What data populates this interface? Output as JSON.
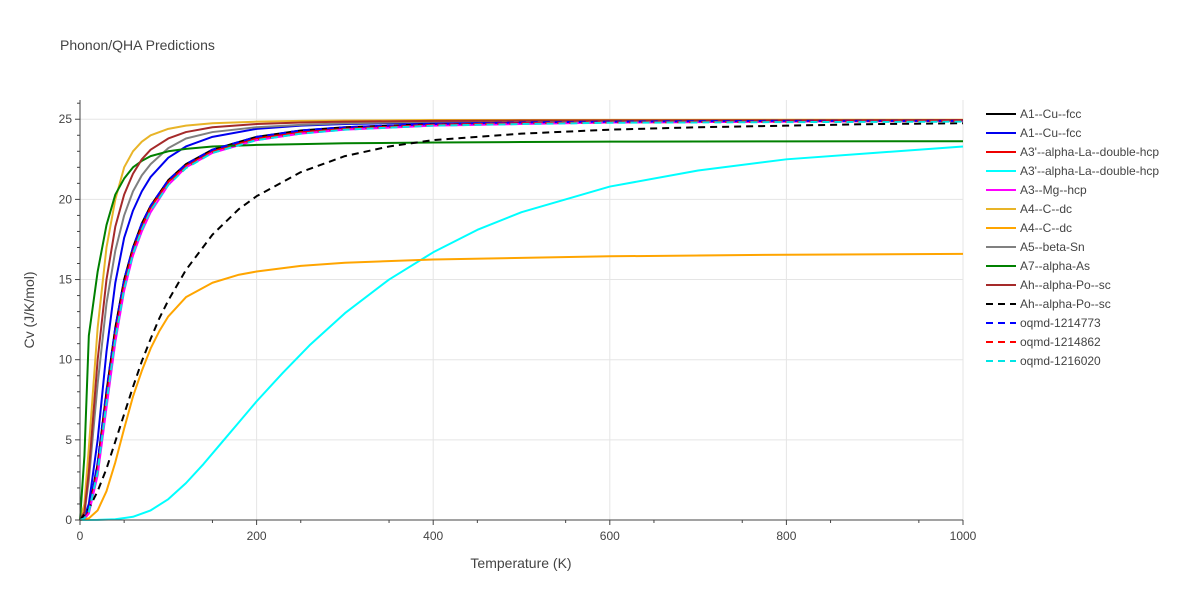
{
  "chart_data": {
    "type": "line",
    "title": "Phonon/QHA Predictions",
    "xlabel": "Temperature (K)",
    "ylabel": "Cv (J/K/mol)",
    "xlim": [
      0,
      1000
    ],
    "ylim": [
      0,
      26.2
    ],
    "x_ticks": [
      0,
      200,
      400,
      600,
      800,
      1000
    ],
    "y_ticks": [
      0,
      5,
      10,
      15,
      20,
      25
    ],
    "grid": true,
    "legend_position": "right",
    "series": [
      {
        "name": "A1--Cu--fcc",
        "color": "#000000",
        "dash": "solid",
        "x": [
          0,
          5,
          10,
          20,
          30,
          40,
          50,
          60,
          70,
          80,
          100,
          120,
          150,
          200,
          250,
          300,
          400,
          500,
          600,
          800,
          1000
        ],
        "y": [
          0,
          0.1,
          0.6,
          3.5,
          8.0,
          12.0,
          15.0,
          17.0,
          18.5,
          19.6,
          21.2,
          22.2,
          23.1,
          23.9,
          24.3,
          24.5,
          24.7,
          24.8,
          24.85,
          24.9,
          24.9
        ]
      },
      {
        "name": "A1--Cu--fcc",
        "color": "#0000ee",
        "dash": "solid",
        "x": [
          0,
          5,
          10,
          20,
          30,
          40,
          50,
          60,
          70,
          80,
          100,
          120,
          150,
          200,
          250,
          300,
          400,
          500,
          600,
          800,
          1000
        ],
        "y": [
          0,
          0.2,
          1.0,
          5.0,
          10.5,
          14.8,
          17.6,
          19.3,
          20.5,
          21.4,
          22.6,
          23.3,
          23.9,
          24.4,
          24.6,
          24.7,
          24.8,
          24.85,
          24.9,
          24.9,
          24.9
        ]
      },
      {
        "name": "A3'--alpha-La--double-hcp",
        "color": "#ee0000",
        "dash": "solid",
        "x": [
          0,
          5,
          10,
          20,
          30,
          40,
          50,
          60,
          70,
          80,
          100,
          120,
          150,
          200,
          250,
          300,
          400,
          500,
          600,
          800,
          1000
        ],
        "y": [
          0,
          0.1,
          0.5,
          3.2,
          7.6,
          11.6,
          14.7,
          16.8,
          18.3,
          19.5,
          21.1,
          22.1,
          23.0,
          23.8,
          24.2,
          24.4,
          24.65,
          24.75,
          24.8,
          24.85,
          24.9
        ]
      },
      {
        "name": "A3'--alpha-La--double-hcp",
        "color": "#00ffff",
        "dash": "solid",
        "x": [
          0,
          20,
          40,
          60,
          80,
          100,
          120,
          140,
          160,
          180,
          200,
          230,
          260,
          300,
          350,
          400,
          450,
          500,
          600,
          700,
          800,
          900,
          1000
        ],
        "y": [
          0,
          0.01,
          0.05,
          0.2,
          0.6,
          1.3,
          2.3,
          3.5,
          4.8,
          6.1,
          7.4,
          9.2,
          10.9,
          12.9,
          15.0,
          16.7,
          18.1,
          19.2,
          20.8,
          21.8,
          22.5,
          22.9,
          23.3
        ]
      },
      {
        "name": "A3--Mg--hcp",
        "color": "#ff00ff",
        "dash": "solid",
        "x": [
          0,
          5,
          10,
          20,
          30,
          40,
          50,
          60,
          70,
          80,
          100,
          120,
          150,
          200,
          250,
          300,
          400,
          500,
          600,
          800,
          1000
        ],
        "y": [
          0,
          0.08,
          0.4,
          2.8,
          7.0,
          11.1,
          14.3,
          16.5,
          18.0,
          19.2,
          20.9,
          22.0,
          22.9,
          23.7,
          24.1,
          24.35,
          24.6,
          24.7,
          24.8,
          24.85,
          24.9
        ]
      },
      {
        "name": "A4--C--dc",
        "color": "#e8b428",
        "dash": "solid",
        "x": [
          0,
          5,
          10,
          20,
          30,
          40,
          50,
          60,
          70,
          80,
          100,
          120,
          150,
          200,
          250,
          300,
          400,
          500,
          600,
          800,
          1000
        ],
        "y": [
          0,
          1.0,
          4.5,
          12.0,
          17.0,
          20.0,
          22.0,
          23.0,
          23.6,
          24.0,
          24.4,
          24.6,
          24.75,
          24.85,
          24.9,
          24.92,
          24.95,
          24.95,
          24.96,
          24.97,
          24.97
        ]
      },
      {
        "name": "A4--C--dc",
        "color": "#ffa500",
        "dash": "solid",
        "x": [
          0,
          10,
          20,
          30,
          40,
          50,
          60,
          70,
          80,
          90,
          100,
          120,
          150,
          180,
          200,
          250,
          300,
          400,
          500,
          600,
          800,
          1000
        ],
        "y": [
          0,
          0.1,
          0.6,
          1.8,
          3.6,
          5.7,
          7.7,
          9.3,
          10.7,
          11.8,
          12.7,
          13.9,
          14.8,
          15.3,
          15.5,
          15.85,
          16.05,
          16.25,
          16.35,
          16.45,
          16.55,
          16.6
        ]
      },
      {
        "name": "A5--beta-Sn",
        "color": "#808080",
        "dash": "solid",
        "x": [
          0,
          5,
          10,
          20,
          30,
          40,
          50,
          60,
          70,
          80,
          100,
          120,
          150,
          200,
          250,
          300,
          400,
          500,
          600,
          800,
          1000
        ],
        "y": [
          0,
          0.4,
          2.5,
          8.5,
          13.5,
          16.8,
          19.0,
          20.5,
          21.5,
          22.2,
          23.2,
          23.8,
          24.2,
          24.5,
          24.65,
          24.75,
          24.85,
          24.9,
          24.9,
          24.92,
          24.92
        ]
      },
      {
        "name": "A7--alpha-As",
        "color": "#008000",
        "dash": "solid",
        "x": [
          0,
          5,
          10,
          20,
          30,
          40,
          50,
          60,
          70,
          80,
          100,
          120,
          150,
          200,
          250,
          300,
          400,
          500,
          600,
          800,
          1000
        ],
        "y": [
          0,
          4.0,
          11.5,
          15.5,
          18.4,
          20.3,
          21.3,
          22.0,
          22.4,
          22.7,
          23.0,
          23.15,
          23.3,
          23.4,
          23.45,
          23.5,
          23.55,
          23.58,
          23.6,
          23.62,
          23.63
        ]
      },
      {
        "name": "Ah--alpha-Po--sc",
        "color": "#a52a2a",
        "dash": "solid",
        "x": [
          0,
          5,
          10,
          20,
          30,
          40,
          50,
          60,
          70,
          80,
          100,
          120,
          150,
          200,
          250,
          300,
          400,
          500,
          600,
          800,
          1000
        ],
        "y": [
          0,
          0.5,
          3.0,
          10.0,
          15.0,
          18.3,
          20.3,
          21.6,
          22.5,
          23.1,
          23.8,
          24.2,
          24.5,
          24.7,
          24.8,
          24.85,
          24.9,
          24.92,
          24.93,
          24.94,
          24.95
        ]
      },
      {
        "name": "Ah--alpha-Po--sc",
        "color": "#000000",
        "dash": "dash",
        "x": [
          0,
          10,
          20,
          30,
          40,
          50,
          60,
          70,
          80,
          90,
          100,
          120,
          150,
          180,
          200,
          250,
          300,
          350,
          400,
          500,
          600,
          700,
          800,
          900,
          1000
        ],
        "y": [
          0,
          0.7,
          1.8,
          3.2,
          4.9,
          6.6,
          8.3,
          9.9,
          11.3,
          12.6,
          13.7,
          15.6,
          17.8,
          19.4,
          20.2,
          21.7,
          22.7,
          23.3,
          23.7,
          24.1,
          24.35,
          24.5,
          24.6,
          24.7,
          24.75
        ]
      },
      {
        "name": "oqmd-1214773",
        "color": "#0000ff",
        "dash": "dash",
        "x": [
          0,
          5,
          10,
          20,
          30,
          40,
          50,
          60,
          70,
          80,
          100,
          120,
          150,
          200,
          250,
          300,
          400,
          500,
          600,
          800,
          1000
        ],
        "y": [
          0,
          0.1,
          0.6,
          3.6,
          8.1,
          12.0,
          15.0,
          17.0,
          18.5,
          19.6,
          21.2,
          22.2,
          23.1,
          23.9,
          24.3,
          24.5,
          24.7,
          24.8,
          24.85,
          24.9,
          24.9
        ]
      },
      {
        "name": "oqmd-1214862",
        "color": "#ff0000",
        "dash": "dash",
        "x": [
          0,
          5,
          10,
          20,
          30,
          40,
          50,
          60,
          70,
          80,
          100,
          120,
          150,
          200,
          250,
          300,
          400,
          500,
          600,
          800,
          1000
        ],
        "y": [
          0,
          0.1,
          0.5,
          3.1,
          7.5,
          11.5,
          14.6,
          16.7,
          18.2,
          19.4,
          21.0,
          22.0,
          22.95,
          23.75,
          24.15,
          24.4,
          24.65,
          24.75,
          24.8,
          24.85,
          24.9
        ]
      },
      {
        "name": "oqmd-1216020",
        "color": "#00e5e5",
        "dash": "dash",
        "x": [
          0,
          5,
          10,
          20,
          30,
          40,
          50,
          60,
          70,
          80,
          100,
          120,
          150,
          200,
          250,
          300,
          400,
          500,
          600,
          800,
          1000
        ],
        "y": [
          0,
          0.1,
          0.5,
          3.0,
          7.3,
          11.3,
          14.4,
          16.6,
          18.1,
          19.3,
          20.9,
          21.95,
          22.9,
          23.7,
          24.1,
          24.35,
          24.6,
          24.7,
          24.78,
          24.82,
          24.85
        ]
      }
    ]
  }
}
